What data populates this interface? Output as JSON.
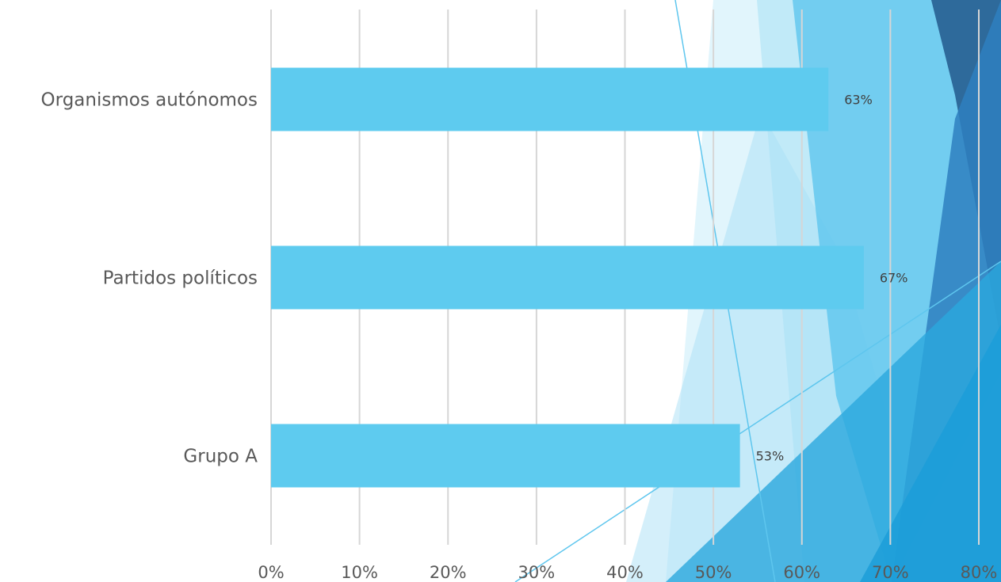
{
  "chart_data": {
    "type": "bar",
    "orientation": "horizontal",
    "categories": [
      "Organismos autónomos",
      "Partidos políticos",
      "Grupo A"
    ],
    "values": [
      63,
      67,
      53
    ],
    "data_labels": [
      "63%",
      "67%",
      "53%"
    ],
    "x_ticks": [
      "0%",
      "10%",
      "20%",
      "30%",
      "40%",
      "50%",
      "60%",
      "70%",
      "80%"
    ],
    "xlim": [
      0,
      80
    ],
    "grid": "vertical",
    "legend": "none",
    "title": "",
    "xlabel": "",
    "ylabel": "",
    "colors": {
      "bar": "#5ecbef",
      "grid": "#d6d6d6",
      "label": "#595959",
      "data_label": "#404040",
      "deco_light": "#c9ecf9",
      "deco_mid": "#5ec6ee",
      "deco_bright": "#2aa7dd",
      "deco_dark": "#2a6496"
    }
  }
}
